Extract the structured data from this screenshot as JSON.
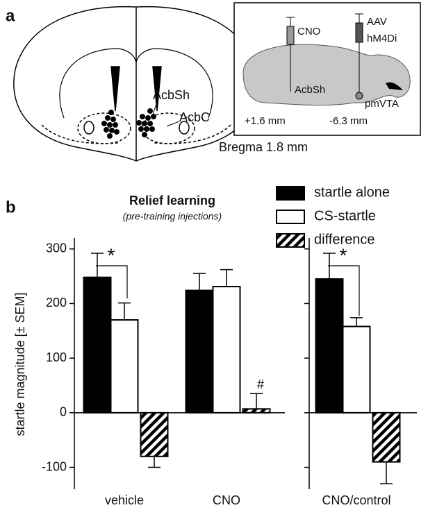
{
  "panel_a": {
    "label": "a",
    "regions": [
      "AcbSh",
      "AcbC"
    ],
    "bregma": "Bregma 1.8 mm",
    "inset": {
      "injection_1": "CNO",
      "injection_2": [
        "AAV",
        "hM4Di"
      ],
      "target_1": "AcbSh",
      "target_2": "pmVTA",
      "coord_1": "+1.6 mm",
      "coord_2": "-6.3 mm"
    }
  },
  "chart_data": {
    "type": "bar",
    "panel_label": "b",
    "title": "Relief learning",
    "subtitle": "(pre-training injections)",
    "y_label": "startle magnitude [± SEM]",
    "categories": [
      "vehicle",
      "CNO",
      "CNO/control"
    ],
    "series": [
      {
        "name": "startle alone",
        "color": "#000000",
        "values": [
          248,
          224,
          245
        ],
        "errors": [
          44,
          31,
          47
        ]
      },
      {
        "name": "CS-startle",
        "color": "#ffffff",
        "values": [
          170,
          231,
          158
        ],
        "errors": [
          31,
          31,
          16
        ]
      },
      {
        "name": "difference",
        "color": "hatched",
        "values": [
          -80,
          7,
          -90
        ],
        "errors": [
          20,
          28,
          40
        ]
      }
    ],
    "annotations": [
      "*",
      "#",
      "*"
    ],
    "ylim": [
      -140,
      320
    ],
    "yticks": [
      -100,
      0,
      100,
      200,
      300
    ]
  }
}
